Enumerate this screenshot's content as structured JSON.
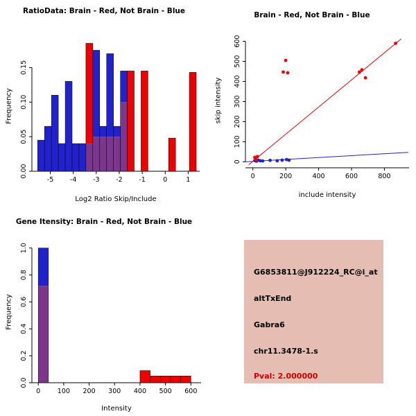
{
  "colors": {
    "blue": "#2222CC",
    "red": "#EE0000",
    "purple": "#7A378B",
    "axis": "#000000",
    "info_bg": "#E5BDB2",
    "pval": "#CC0000"
  },
  "chart_data": [
    {
      "id": "ratio_histogram",
      "type": "histogram-overlay",
      "title": "RatioData: Brain - Red, Not Brain - Blue",
      "xlabel": "Log2 Ratio Skip/Include",
      "ylabel": "Frequency",
      "bin_start": -5.55,
      "bin_width": 0.3,
      "xlim": [
        -5.8,
        1.5
      ],
      "ylim": [
        0,
        0.1875
      ],
      "xticks": [
        -5,
        -4,
        -3,
        -2,
        -1,
        0,
        1
      ],
      "yticks": [
        0,
        0.05,
        0.1,
        0.15
      ],
      "ytick_labels": [
        "0.00",
        "0.05",
        "0.10",
        "0.15"
      ],
      "grid": false,
      "legend": "none",
      "series": [
        {
          "name": "Not Brain (blue)",
          "color": "blue",
          "values": [
            0.045,
            0.065,
            0.11,
            0.04,
            0.13,
            0.04,
            0.04,
            0.04,
            0.175,
            0.065,
            0.17,
            0.065,
            0.145,
            0,
            0,
            0,
            0,
            0,
            0,
            0,
            0,
            0,
            0
          ]
        },
        {
          "name": "Brain (red)",
          "color": "red",
          "values": [
            0,
            0,
            0,
            0,
            0,
            0,
            0,
            0.185,
            0.05,
            0.05,
            0.05,
            0.05,
            0.1,
            0.145,
            0,
            0.145,
            0,
            0,
            0,
            0.048,
            0,
            0,
            0.143
          ]
        }
      ]
    },
    {
      "id": "intensity_scatter",
      "type": "scatter",
      "title": "Brain - Red, Not Brain - Blue",
      "xlabel": "include intensity",
      "ylabel": "skip intensity",
      "xlim": [
        -45,
        950
      ],
      "ylim": [
        -30,
        640
      ],
      "xticks": [
        0,
        200,
        400,
        600,
        800
      ],
      "yticks": [
        0,
        100,
        200,
        300,
        400,
        500,
        600
      ],
      "grid": false,
      "legend": "none",
      "series": [
        {
          "name": "Not Brain (blue)",
          "color": "blue",
          "points": [
            [
              12,
              6
            ],
            [
              22,
              3
            ],
            [
              32,
              8
            ],
            [
              45,
              5
            ],
            [
              60,
              4
            ],
            [
              105,
              7
            ],
            [
              148,
              5
            ],
            [
              178,
              8
            ],
            [
              205,
              11
            ],
            [
              220,
              8
            ]
          ],
          "line": {
            "x1": -45,
            "y1": 0,
            "x2": 945,
            "y2": 47
          }
        },
        {
          "name": "Brain (red)",
          "color": "red",
          "points": [
            [
              12,
              22
            ],
            [
              20,
              10
            ],
            [
              28,
              26
            ],
            [
              185,
              447
            ],
            [
              200,
              505
            ],
            [
              212,
              443
            ],
            [
              648,
              447
            ],
            [
              663,
              458
            ],
            [
              685,
              418
            ],
            [
              868,
              590
            ]
          ],
          "line": {
            "x1": -25,
            "y1": -15,
            "x2": 902,
            "y2": 612
          }
        }
      ]
    },
    {
      "id": "gene_intensity_histogram",
      "type": "histogram-overlay",
      "title": "Gene Itensity: Brain - Red, Not Brain - Blue",
      "xlabel": "Intensity",
      "ylabel": "Frequency",
      "bin_start": 0,
      "bin_width": 40,
      "xlim": [
        -25,
        640
      ],
      "ylim": [
        0,
        1.05
      ],
      "xticks": [
        0,
        100,
        200,
        300,
        400,
        500,
        600
      ],
      "yticks": [
        0,
        0.2,
        0.4,
        0.6,
        0.8,
        1.0
      ],
      "ytick_labels": [
        "0.0",
        "0.2",
        "0.4",
        "0.6",
        "0.8",
        "1.0"
      ],
      "grid": false,
      "legend": "none",
      "series": [
        {
          "name": "Not Brain (blue)",
          "color": "blue",
          "values": [
            1.0,
            0,
            0,
            0,
            0,
            0,
            0,
            0,
            0,
            0,
            0,
            0,
            0,
            0,
            0
          ]
        },
        {
          "name": "Brain (red)",
          "color": "red",
          "values": [
            0.72,
            0,
            0,
            0,
            0,
            0,
            0,
            0,
            0,
            0,
            0.09,
            0.05,
            0.05,
            0.05,
            0.05
          ]
        }
      ]
    }
  ],
  "info_panel": {
    "lines": [
      {
        "text": "G6853811@J912224_RC@i_at",
        "color": "black"
      },
      {
        "text": "altTxEnd",
        "color": "black"
      },
      {
        "text": "Gabra6",
        "color": "black"
      },
      {
        "text": "chr11.3478-1.s",
        "color": "black"
      },
      {
        "text": "Pval: 2.000000",
        "color": "red"
      }
    ]
  }
}
